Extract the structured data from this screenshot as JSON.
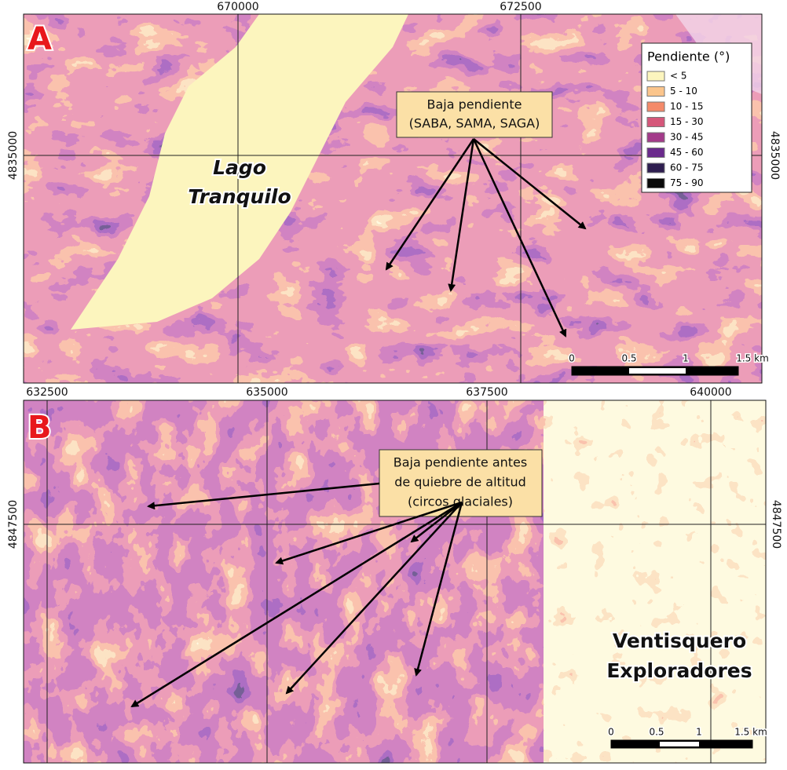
{
  "panel_a": {
    "label": "A",
    "x_ticks": [
      "670000",
      "672500"
    ],
    "y_ticks": [
      "4835000"
    ],
    "place_label": [
      "Lago",
      "Tranquilo"
    ],
    "annotation": [
      "Baja pendiente",
      "(SABA, SAMA, SAGA)"
    ],
    "scale_bar": [
      "0",
      "0.5",
      "1",
      "1.5 km"
    ]
  },
  "legend": {
    "title": "Pendiente (°)",
    "items": [
      {
        "label": "< 5",
        "color": "#fcf5be"
      },
      {
        "label": "5 - 10",
        "color": "#fbc58c"
      },
      {
        "label": "10 - 15",
        "color": "#f48a6a"
      },
      {
        "label": "15 - 30",
        "color": "#d5577a"
      },
      {
        "label": "30 - 45",
        "color": "#a33a8a"
      },
      {
        "label": "45 - 60",
        "color": "#6a2a8c"
      },
      {
        "label": "60 - 75",
        "color": "#2e1e50"
      },
      {
        "label": "75 - 90",
        "color": "#0a0a0a"
      }
    ]
  },
  "panel_b": {
    "label": "B",
    "x_ticks": [
      "632500",
      "635000",
      "637500",
      "640000"
    ],
    "y_ticks": [
      "4847500"
    ],
    "place_label": [
      "Ventisquero",
      "Exploradores"
    ],
    "annotation": [
      "Baja pendiente antes",
      "de quiebre de altitud",
      "(circos glaciales)"
    ],
    "scale_bar": [
      "0",
      "0.5",
      "1",
      "1.5 km"
    ]
  }
}
